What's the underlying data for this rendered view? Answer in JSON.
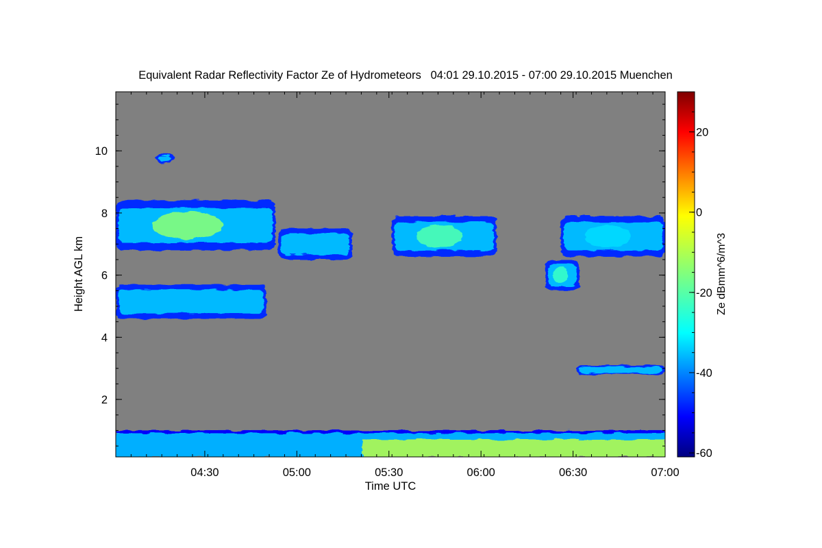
{
  "chart_data": {
    "type": "heatmap",
    "title": "Equivalent Radar Reflectivity Factor Ze of Hydrometeors   04:01 29.10.2015 - 07:00 29.10.2015 Muenchen",
    "xlabel": "Time UTC",
    "ylabel": "Height AGL km",
    "x_range": [
      "04:01",
      "07:00"
    ],
    "xlim_minutes": [
      241,
      420
    ],
    "ylim": [
      0.15,
      11.9
    ],
    "x_ticks": [
      {
        "label": "04:30",
        "minutes": 270
      },
      {
        "label": "05:00",
        "minutes": 300
      },
      {
        "label": "05:30",
        "minutes": 330
      },
      {
        "label": "06:00",
        "minutes": 360
      },
      {
        "label": "06:30",
        "minutes": 390
      },
      {
        "label": "07:00",
        "minutes": 420
      }
    ],
    "y_ticks": [
      {
        "label": "2",
        "value": 2
      },
      {
        "label": "4",
        "value": 4
      },
      {
        "label": "6",
        "value": 6
      },
      {
        "label": "8",
        "value": 8
      },
      {
        "label": "10",
        "value": 10
      }
    ],
    "colorbar": {
      "label": "Ze dBmm^6/m^3",
      "range": [
        -61,
        30
      ],
      "ticks": [
        {
          "label": "20",
          "value": 20
        },
        {
          "label": "0",
          "value": 0
        },
        {
          "label": "-20",
          "value": -20
        },
        {
          "label": "-40",
          "value": -40
        },
        {
          "label": "-60",
          "value": -60
        }
      ],
      "colormap": "jet"
    },
    "background_color": "#808080",
    "features": [
      {
        "name": "upper-cloud-layer-1",
        "t_start": 241,
        "t_end": 293,
        "h_bottom": 6.8,
        "h_top": 8.4,
        "ze_peak": -15
      },
      {
        "name": "upper-cloud-layer-2",
        "t_start": 294,
        "t_end": 318,
        "h_bottom": 6.5,
        "h_top": 7.5,
        "ze_peak": -38
      },
      {
        "name": "upper-cloud-layer-3",
        "t_start": 331,
        "t_end": 365,
        "h_bottom": 6.6,
        "h_top": 7.9,
        "ze_peak": -20
      },
      {
        "name": "upper-cloud-layer-4",
        "t_start": 386,
        "t_end": 420,
        "h_bottom": 6.6,
        "h_top": 7.9,
        "ze_peak": -30
      },
      {
        "name": "falling-cell",
        "t_start": 381,
        "t_end": 392,
        "h_bottom": 5.5,
        "h_top": 6.5,
        "ze_peak": -22
      },
      {
        "name": "mid-cloud-layer",
        "t_start": 241,
        "t_end": 290,
        "h_bottom": 4.6,
        "h_top": 5.7,
        "ze_peak": -33
      },
      {
        "name": "low-thin-layer",
        "t_start": 391,
        "t_end": 420,
        "h_bottom": 2.8,
        "h_top": 3.1,
        "ze_peak": -45
      },
      {
        "name": "boundary-layer",
        "t_start": 241,
        "t_end": 420,
        "h_bottom": 0.15,
        "h_top": 1.0,
        "ze_peak": -10
      },
      {
        "name": "cirrus-fragment",
        "t_start": 254,
        "t_end": 260,
        "h_bottom": 9.6,
        "h_top": 9.9,
        "ze_peak": -45
      }
    ]
  }
}
